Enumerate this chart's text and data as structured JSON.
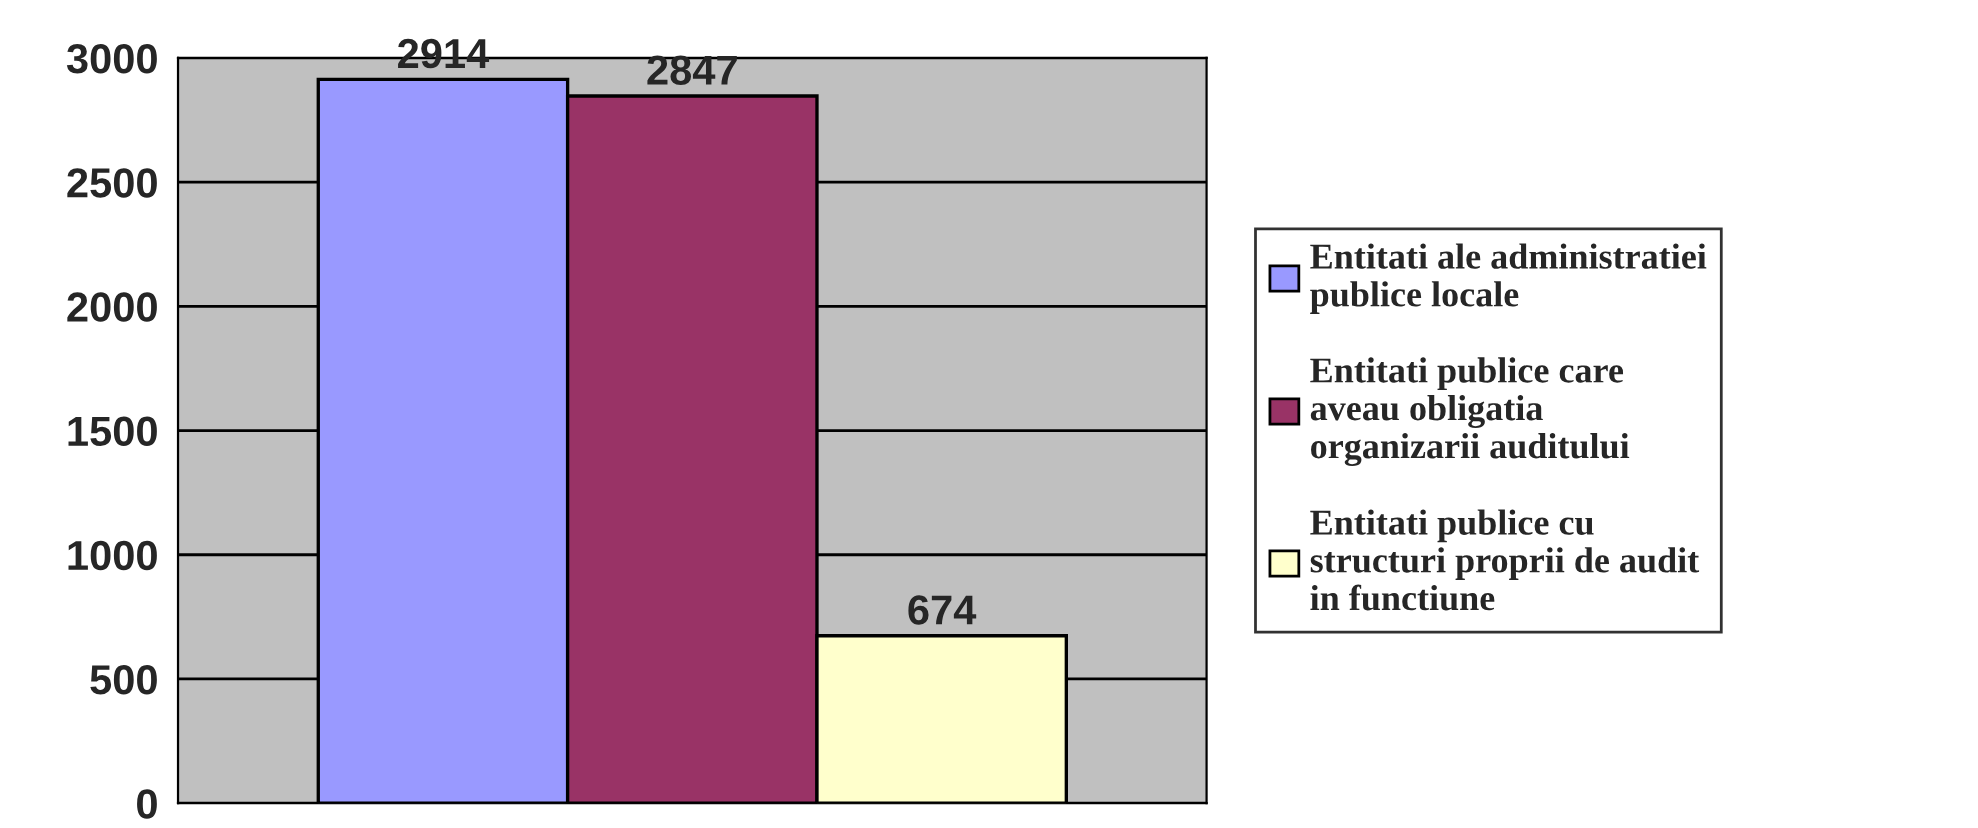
{
  "chart_data": {
    "type": "bar",
    "categories": [
      null
    ],
    "series": [
      {
        "name": "Entitati ale administratiei\npublice locale",
        "color": "#9999ff",
        "values": [
          2914
        ]
      },
      {
        "name": "Entitati publice care\naveau obligatia\norganizarii auditului",
        "color": "#993366",
        "values": [
          2847
        ]
      },
      {
        "name": "Entitati publice cu\nstructuri proprii de audit\nin functiune",
        "color": "#ffffcc",
        "values": [
          674
        ]
      }
    ],
    "ylim": [
      0,
      3000
    ],
    "yticks": [
      0,
      500,
      1000,
      1500,
      2000,
      2500,
      3000
    ],
    "grid": "y",
    "legend": "right",
    "data_labels": true
  }
}
